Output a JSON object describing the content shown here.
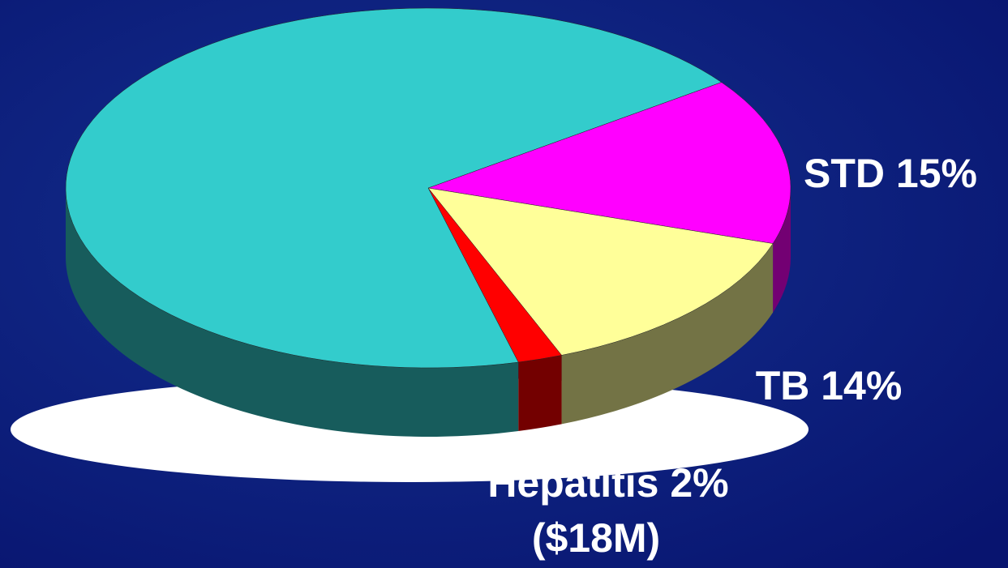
{
  "chart_data": {
    "type": "pie3d",
    "values": [
      15,
      14,
      2,
      69
    ],
    "value_labels": [
      "STD 15%",
      "TB 14%",
      "Hepatitis 2%",
      null
    ],
    "colors": [
      "#ff00ff",
      "#ffff99",
      "#ff0000",
      "#33cccc"
    ],
    "annotations": [
      "($18M)"
    ]
  }
}
